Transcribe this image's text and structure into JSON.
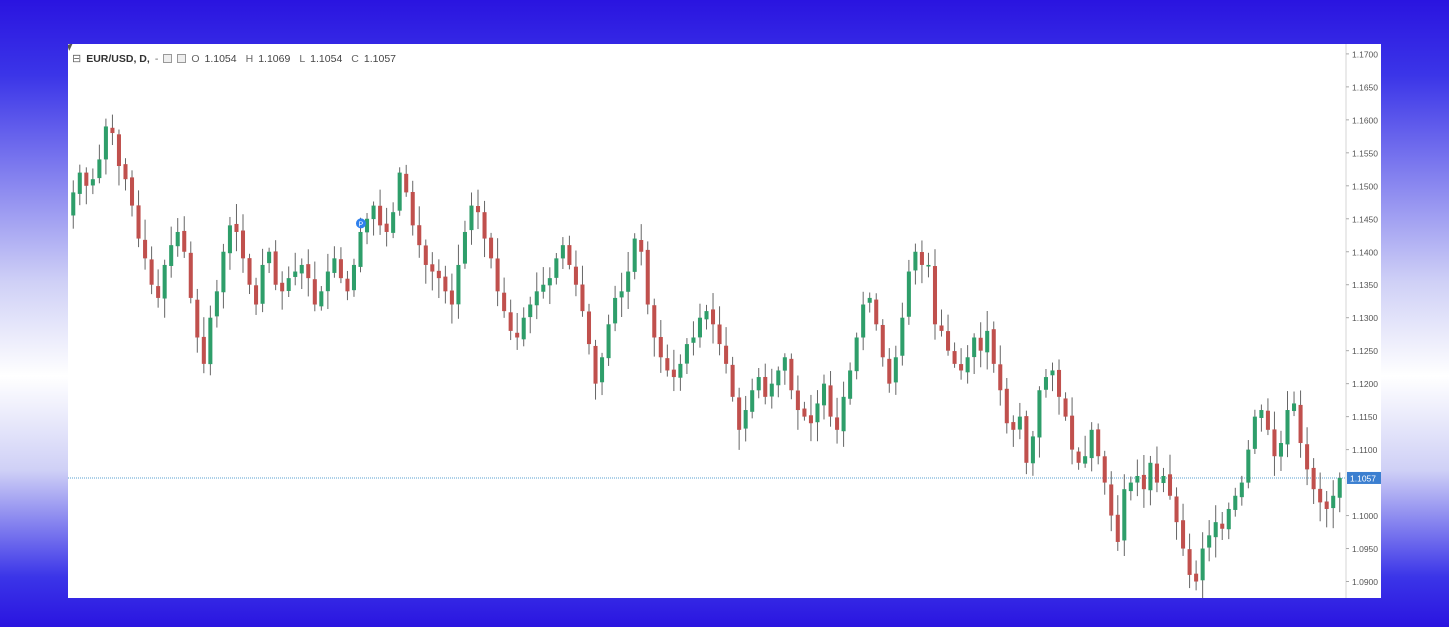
{
  "legend": {
    "symbol": "EUR/USD, D,",
    "dash": "-",
    "o_label": "O",
    "o_value": "1.1054",
    "h_label": "H",
    "h_value": "1.1069",
    "l_label": "L",
    "l_value": "1.1054",
    "c_label": "C",
    "c_value": "1.1057"
  },
  "colors": {
    "up": "#2e9e6a",
    "down": "#c0504d",
    "wick": "#666666",
    "price_line": "#5aa0d0",
    "price_tag": "#3b7fd0",
    "marker": "#2f80ed"
  },
  "icons": {
    "collapse": "collapse-icon",
    "cursor": "cursor-icon",
    "marker": "pin-marker-icon"
  },
  "marker_label": "P",
  "chart_data": {
    "type": "candlestick",
    "title": "",
    "symbol": "EUR/USD",
    "interval": "D",
    "ylim": [
      1.0875,
      1.1715
    ],
    "y_ticks": [
      "1.1700",
      "1.1650",
      "1.1600",
      "1.1550",
      "1.1500",
      "1.1450",
      "1.1400",
      "1.1350",
      "1.1300",
      "1.1250",
      "1.1200",
      "1.1150",
      "1.1100",
      "1.1057",
      "1.1000",
      "1.0950",
      "1.0900"
    ],
    "last_price": 1.1057,
    "last_price_label": "1.1057",
    "grid": false,
    "closes": [
      1.149,
      1.152,
      1.15,
      1.151,
      1.154,
      1.159,
      1.158,
      1.153,
      1.151,
      1.147,
      1.142,
      1.139,
      1.135,
      1.133,
      1.138,
      1.141,
      1.143,
      1.14,
      1.133,
      1.127,
      1.123,
      1.13,
      1.134,
      1.14,
      1.144,
      1.143,
      1.139,
      1.135,
      1.132,
      1.138,
      1.14,
      1.135,
      1.134,
      1.136,
      1.137,
      1.138,
      1.136,
      1.132,
      1.134,
      1.137,
      1.139,
      1.136,
      1.134,
      1.138,
      1.143,
      1.145,
      1.147,
      1.144,
      1.143,
      1.146,
      1.152,
      1.149,
      1.144,
      1.141,
      1.138,
      1.137,
      1.136,
      1.134,
      1.132,
      1.138,
      1.143,
      1.147,
      1.146,
      1.142,
      1.139,
      1.134,
      1.131,
      1.128,
      1.127,
      1.13,
      1.132,
      1.134,
      1.135,
      1.136,
      1.139,
      1.141,
      1.138,
      1.135,
      1.131,
      1.126,
      1.12,
      1.124,
      1.129,
      1.133,
      1.134,
      1.137,
      1.142,
      1.14,
      1.132,
      1.127,
      1.124,
      1.122,
      1.121,
      1.123,
      1.126,
      1.127,
      1.13,
      1.131,
      1.129,
      1.126,
      1.123,
      1.118,
      1.113,
      1.116,
      1.119,
      1.121,
      1.118,
      1.12,
      1.122,
      1.124,
      1.119,
      1.116,
      1.115,
      1.114,
      1.117,
      1.12,
      1.115,
      1.113,
      1.118,
      1.122,
      1.127,
      1.132,
      1.133,
      1.129,
      1.124,
      1.12,
      1.124,
      1.13,
      1.137,
      1.14,
      1.138,
      1.138,
      1.129,
      1.128,
      1.125,
      1.123,
      1.122,
      1.124,
      1.127,
      1.125,
      1.128,
      1.123,
      1.119,
      1.114,
      1.113,
      1.115,
      1.108,
      1.112,
      1.119,
      1.121,
      1.122,
      1.118,
      1.115,
      1.11,
      1.108,
      1.109,
      1.113,
      1.109,
      1.105,
      1.1,
      1.096,
      1.104,
      1.105,
      1.106,
      1.104,
      1.108,
      1.105,
      1.106,
      1.103,
      1.099,
      1.095,
      1.091,
      1.09,
      1.095,
      1.097,
      1.099,
      1.098,
      1.101,
      1.103,
      1.105,
      1.11,
      1.115,
      1.116,
      1.113,
      1.109,
      1.111,
      1.116,
      1.117,
      1.111,
      1.107,
      1.104,
      1.102,
      1.101,
      1.103,
      1.1057
    ]
  }
}
